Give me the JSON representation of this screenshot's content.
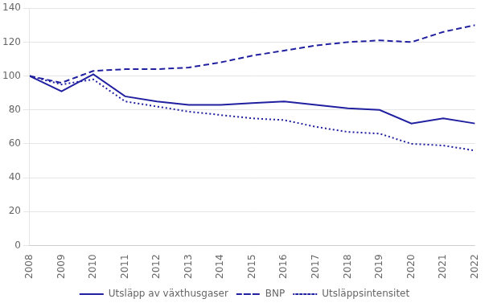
{
  "chart_data": {
    "type": "line",
    "x": [
      2008,
      2009,
      2010,
      2011,
      2012,
      2013,
      2014,
      2015,
      2016,
      2017,
      2018,
      2019,
      2020,
      2021,
      2022
    ],
    "series": [
      {
        "name": "Utsläpp av växthusgaser",
        "color": "#2020A0",
        "line_style": "solid",
        "values": [
          100,
          91,
          101,
          88,
          85,
          83,
          83,
          84,
          85,
          83,
          81,
          80,
          72,
          75,
          72
        ]
      },
      {
        "name": "BNP",
        "color": "#2020A0",
        "line_style": "dashed",
        "values": [
          100,
          96,
          103,
          104,
          104,
          105,
          108,
          112,
          115,
          118,
          120,
          121,
          120,
          126,
          130
        ]
      },
      {
        "name": "Utsläppsintensitet",
        "color": "#2020A0",
        "line_style": "dotted",
        "values": [
          100,
          95,
          98,
          85,
          82,
          79,
          77,
          75,
          74,
          70,
          67,
          66,
          60,
          59,
          56
        ]
      }
    ],
    "xlim": [
      2008,
      2022
    ],
    "xticks": [
      2008,
      2009,
      2010,
      2011,
      2012,
      2013,
      2014,
      2015,
      2016,
      2017,
      2018,
      2019,
      2020,
      2021,
      2022
    ],
    "ylim": [
      0,
      140
    ],
    "yticks": [
      0,
      20,
      40,
      60,
      80,
      100,
      120,
      140
    ],
    "grid": true,
    "legend": "bottom"
  }
}
